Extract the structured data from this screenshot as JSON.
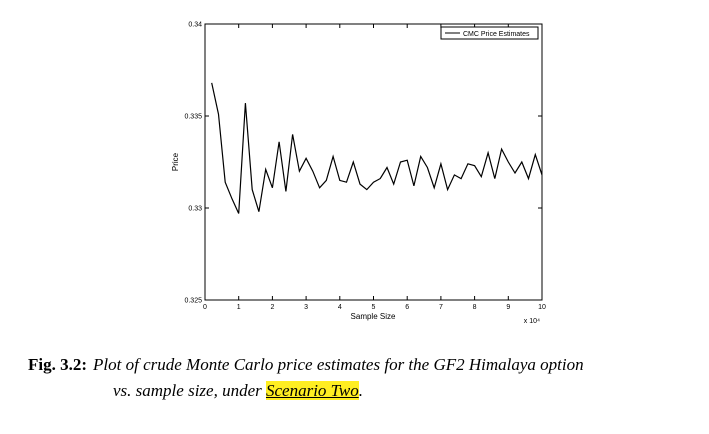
{
  "chart_data": {
    "type": "line",
    "xlabel": "Sample Size",
    "ylabel": "Price",
    "x_scale_note": "x 10⁴",
    "xlim": [
      0,
      10
    ],
    "ylim": [
      0.325,
      0.34
    ],
    "xticks": [
      "0",
      "1",
      "2",
      "3",
      "4",
      "5",
      "6",
      "7",
      "8",
      "9",
      "10"
    ],
    "yticks": [
      "0.325",
      "0.33",
      "0.335",
      "0.34"
    ],
    "legend_position": "top-right",
    "series": [
      {
        "name": "CMC Price Estimates",
        "x": [
          0.2,
          0.4,
          0.6,
          0.8,
          1.0,
          1.2,
          1.4,
          1.6,
          1.8,
          2.0,
          2.2,
          2.4,
          2.6,
          2.8,
          3.0,
          3.2,
          3.4,
          3.6,
          3.8,
          4.0,
          4.2,
          4.4,
          4.6,
          4.8,
          5.0,
          5.2,
          5.4,
          5.6,
          5.8,
          6.0,
          6.2,
          6.4,
          6.6,
          6.8,
          7.0,
          7.2,
          7.4,
          7.6,
          7.8,
          8.0,
          8.2,
          8.4,
          8.6,
          8.8,
          9.0,
          9.2,
          9.4,
          9.6,
          9.8,
          10.0
        ],
        "y": [
          0.3368,
          0.3351,
          0.3314,
          0.3305,
          0.3297,
          0.3357,
          0.331,
          0.3298,
          0.3321,
          0.3311,
          0.3336,
          0.3309,
          0.334,
          0.332,
          0.3327,
          0.332,
          0.3311,
          0.3315,
          0.3328,
          0.3315,
          0.3314,
          0.3325,
          0.3313,
          0.331,
          0.3314,
          0.3316,
          0.3322,
          0.3313,
          0.3325,
          0.3326,
          0.3312,
          0.3328,
          0.3322,
          0.3311,
          0.3324,
          0.331,
          0.3318,
          0.3316,
          0.3324,
          0.3323,
          0.3317,
          0.333,
          0.3316,
          0.3332,
          0.3325,
          0.3319,
          0.3325,
          0.3316,
          0.3329,
          0.3318
        ]
      }
    ]
  },
  "caption": {
    "lead": "Fig. 3.2:",
    "line1": "Plot of crude Monte Carlo price estimates for the GF2 Himalaya option",
    "line2_prefix": "vs. sample size, under ",
    "highlight": "Scenario Two",
    "line2_suffix": "."
  }
}
